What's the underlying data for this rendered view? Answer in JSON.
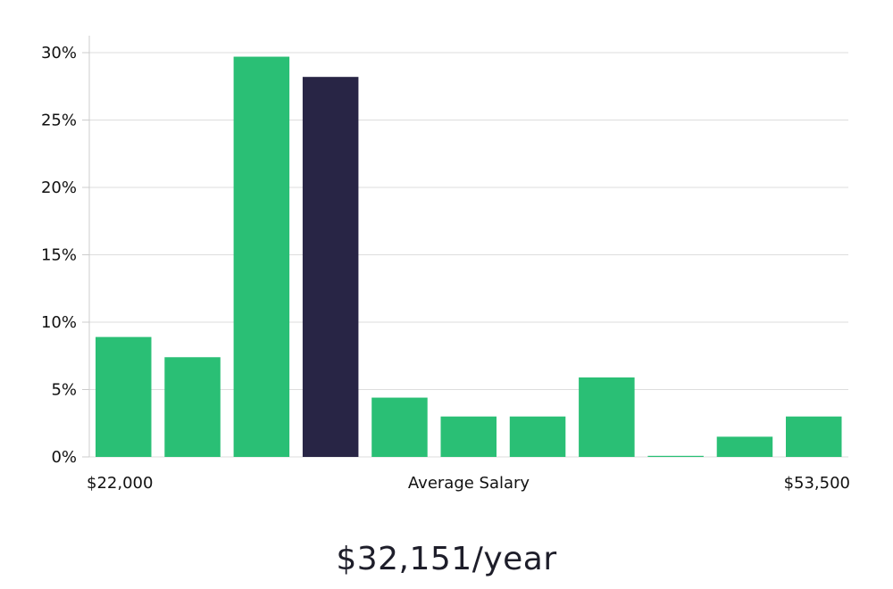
{
  "chart_data": {
    "type": "bar",
    "values": [
      8.9,
      7.4,
      29.7,
      28.2,
      4.4,
      3.0,
      3.0,
      5.9,
      0.0,
      1.5,
      3.0
    ],
    "highlight_index": 3,
    "ylim": [
      0,
      30
    ],
    "yticks": [
      0,
      5,
      10,
      15,
      20,
      25,
      30
    ],
    "ytick_suffix": "%",
    "x_min_label": "$22,000",
    "x_max_label": "$53,500",
    "xlabel": "Average Salary",
    "grid": true,
    "colors": {
      "bar": "#2abf75",
      "highlight": "#282545",
      "grid": "#dddddd",
      "axis": "#cccccc"
    }
  },
  "summary": {
    "salary": "$32,151/year"
  }
}
